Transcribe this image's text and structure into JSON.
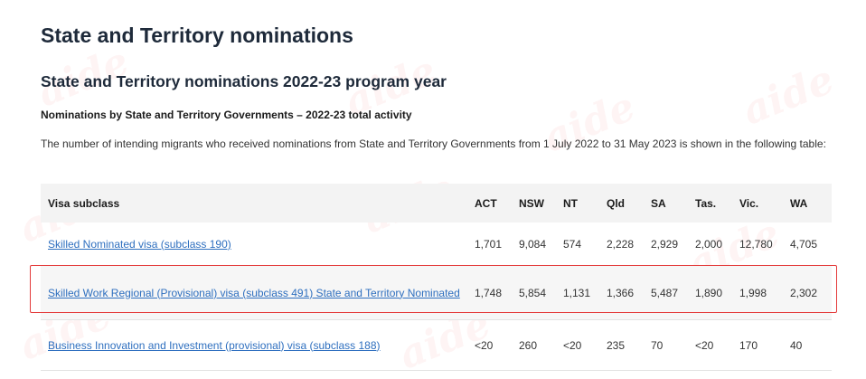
{
  "page": {
    "title": "State and Territory nominations",
    "program_year_heading": "State and Territory nominations 2022-23 program year",
    "subheading": "Nominations by State and Territory Governments – 2022-23 total activity",
    "intro": "The number of intending migrants who received nominations from State and Territory Governments from 1 July 2022 to 31 May 2023 is shown in the following table:"
  },
  "table": {
    "headers": {
      "visa": "Visa subclass",
      "act": "ACT",
      "nsw": "NSW",
      "nt": "NT",
      "qld": "Qld",
      "sa": "SA",
      "tas": "Tas.",
      "vic": "Vic.",
      "wa": "WA"
    },
    "rows": [
      {
        "visa": "Skilled Nominated visa (subclass 190)",
        "act": "1,701",
        "nsw": "9,084",
        "nt": "574",
        "qld": "2,228",
        "sa": "2,929",
        "tas": "2,000",
        "vic": "12,780",
        "wa": "4,705"
      },
      {
        "visa": "Skilled Work Regional (Provisional) visa (subclass 491) State and Territory Nominated",
        "act": "1,748",
        "nsw": "5,854",
        "nt": "1,131",
        "qld": "1,366",
        "sa": "5,487",
        "tas": "1,890",
        "vic": "1,998",
        "wa": "2,302"
      },
      {
        "visa": "Business Innovation and Investment (provisional) visa (subclass 188)",
        "act": "<20",
        "nsw": "260",
        "nt": "<20",
        "qld": "235",
        "sa": "70",
        "tas": "<20",
        "vic": "170",
        "wa": "40"
      }
    ]
  },
  "colors": {
    "link": "#2e6fbf",
    "highlight": "#e43b3b",
    "header_bg": "#f3f3f3"
  }
}
